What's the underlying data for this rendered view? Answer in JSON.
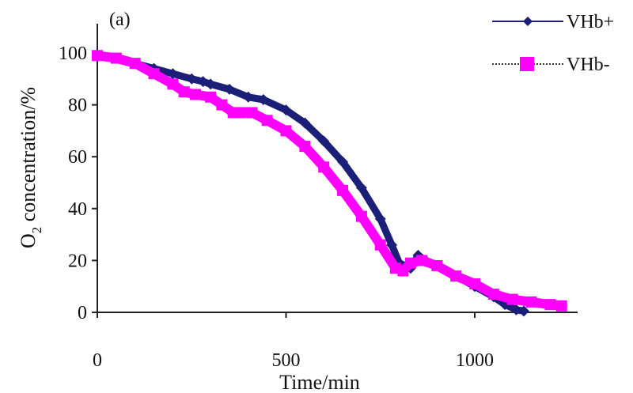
{
  "chart_data": {
    "type": "line",
    "panel_label": "(a)",
    "xlabel": "Time/min",
    "ylabel_prefix": "O",
    "ylabel_sub": "2",
    "ylabel_suffix": " concentration/%",
    "xlim": [
      0,
      1250
    ],
    "ylim": [
      0,
      110
    ],
    "xticks": [
      0,
      500,
      1000
    ],
    "yticks": [
      0,
      20,
      40,
      60,
      80,
      100
    ],
    "grid": false,
    "legend_position": "top-right",
    "series": [
      {
        "name": "VHb+",
        "color": "#1c1f78",
        "line_style": "solid",
        "marker": "diamond",
        "x": [
          0,
          50,
          100,
          150,
          200,
          250,
          280,
          300,
          350,
          400,
          440,
          500,
          550,
          600,
          650,
          700,
          750,
          780,
          800,
          830,
          850,
          870,
          900,
          950,
          1000,
          1050,
          1080,
          1110,
          1130
        ],
        "y": [
          99,
          98,
          96,
          94,
          92,
          90,
          89,
          88,
          86,
          83,
          82,
          78,
          73,
          66,
          58,
          48,
          36,
          26,
          19,
          17,
          22,
          20,
          18,
          14,
          10,
          6,
          3,
          1,
          0.5
        ]
      },
      {
        "name": "VHb-",
        "color": "#ff00ff",
        "line_style": "dotted",
        "marker": "square",
        "x": [
          0,
          50,
          100,
          150,
          200,
          230,
          260,
          300,
          330,
          360,
          380,
          410,
          450,
          500,
          550,
          600,
          650,
          700,
          750,
          790,
          810,
          830,
          860,
          900,
          950,
          1000,
          1050,
          1100,
          1150,
          1200,
          1230
        ],
        "y": [
          99,
          98,
          96,
          92,
          88,
          85,
          84,
          83,
          80,
          77,
          77,
          77,
          74,
          70,
          64,
          56,
          47,
          37,
          26,
          17,
          16,
          19,
          20,
          18,
          14,
          11,
          7,
          5,
          4,
          3,
          2.5
        ]
      }
    ]
  }
}
